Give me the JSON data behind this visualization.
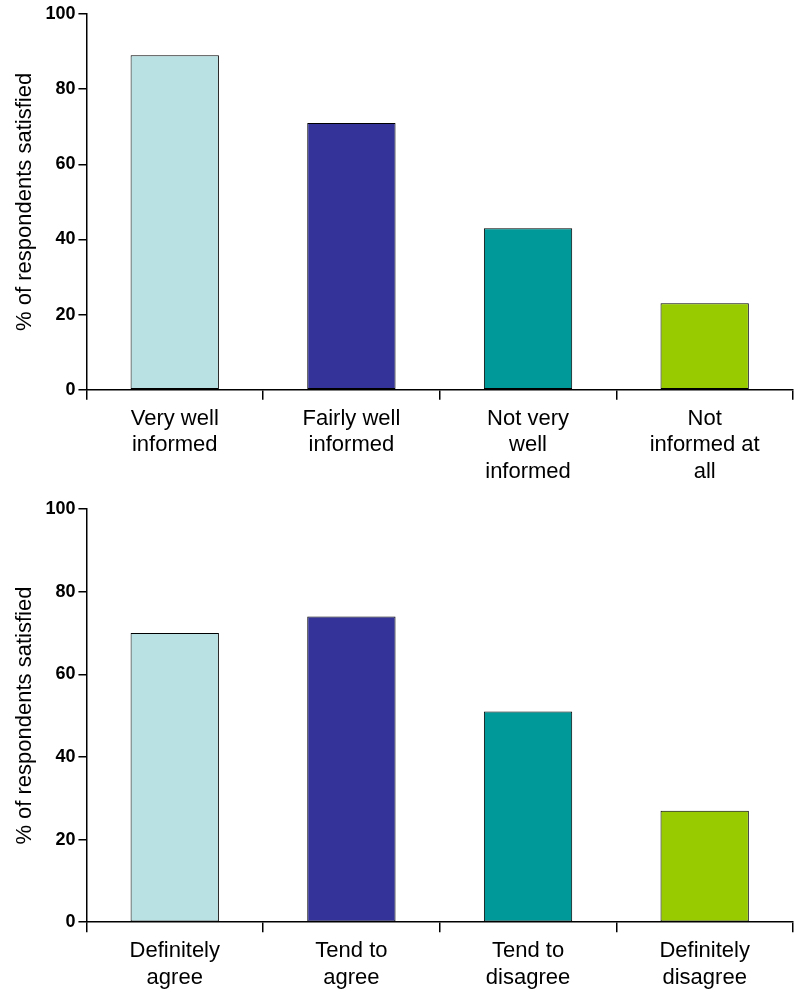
{
  "chart_data": [
    {
      "type": "bar",
      "ylabel": "% of respondents satisfied",
      "categories": [
        "Very well informed",
        "Fairly well informed",
        "Not very well informed",
        "Not informed at all"
      ],
      "values": [
        89,
        71,
        43,
        23
      ],
      "colors": [
        "#b9e0e3",
        "#333399",
        "#009999",
        "#99cc00"
      ],
      "ylim": [
        0,
        100
      ],
      "yticks": [
        0,
        20,
        40,
        60,
        80,
        100
      ],
      "grid": false
    },
    {
      "type": "bar",
      "ylabel": "% of respondents satisfied",
      "categories": [
        "Definitely agree",
        "Tend to agree",
        "Tend to disagree",
        "Definitely disagree"
      ],
      "values": [
        70,
        74,
        51,
        27
      ],
      "colors": [
        "#b9e0e3",
        "#333399",
        "#009999",
        "#99cc00"
      ],
      "ylim": [
        0,
        100
      ],
      "yticks": [
        0,
        20,
        40,
        60,
        80,
        100
      ],
      "grid": false
    }
  ]
}
